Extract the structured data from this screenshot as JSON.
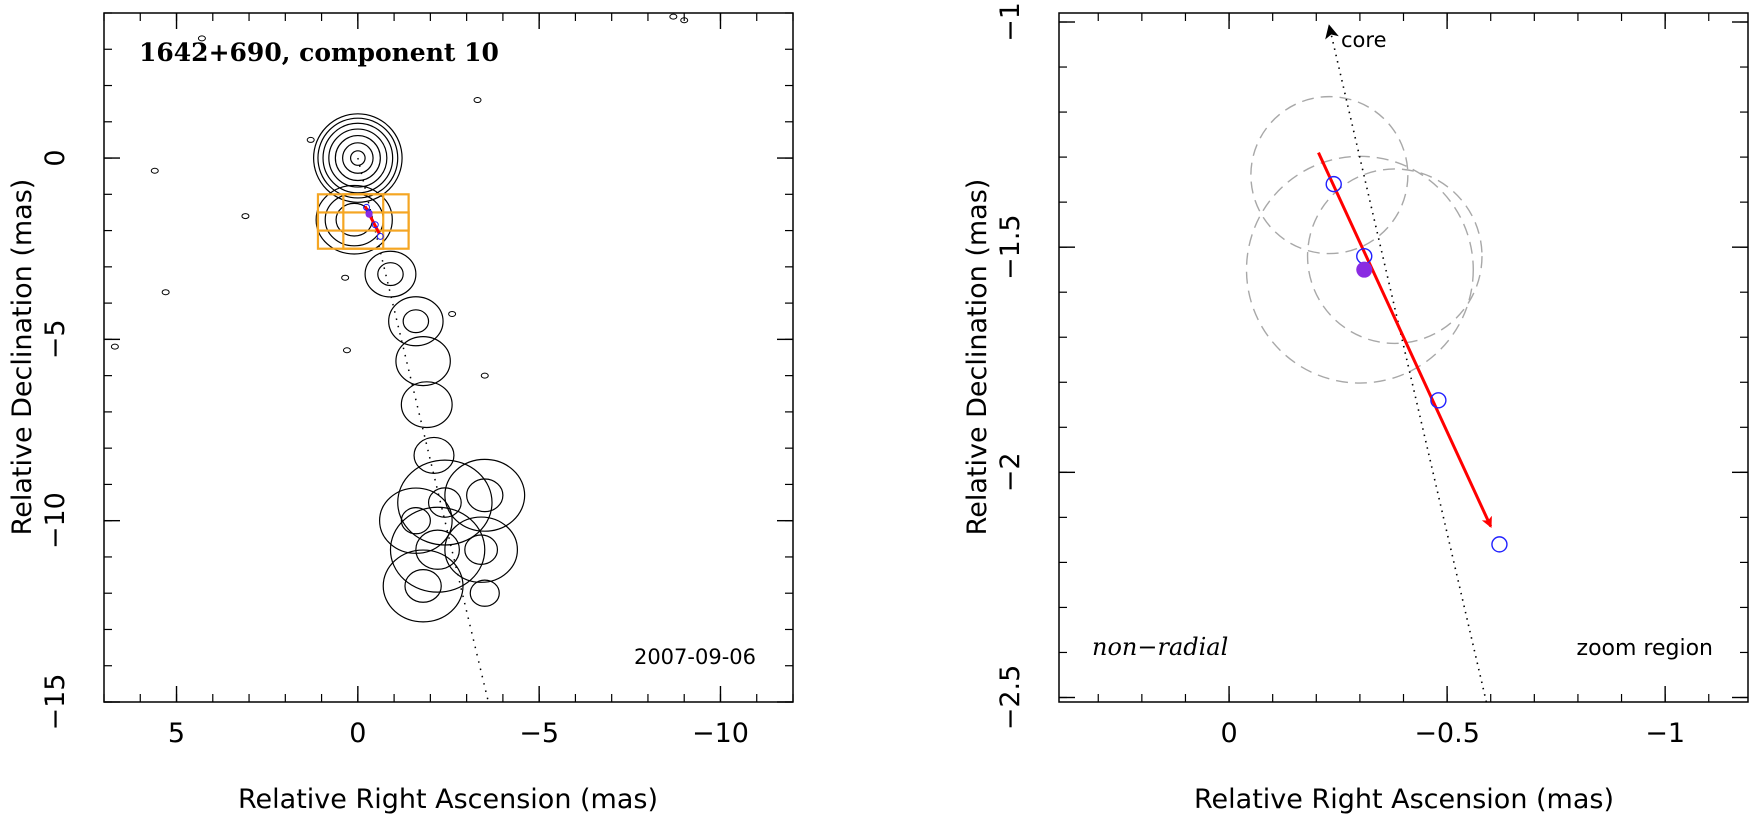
{
  "chart_data": [
    {
      "type": "contour",
      "id": "left",
      "title": "1642+690, component 10",
      "date_label": "2007-09-06",
      "xlabel": "Relative Right Ascension (mas)",
      "ylabel": "Relative Declination (mas)",
      "xlim": [
        7,
        -12
      ],
      "ylim": [
        -15,
        4
      ],
      "xticks_major": [
        5,
        0,
        -5,
        -10
      ],
      "yticks_major": [
        0,
        -5,
        -10,
        -15
      ],
      "xtick_labels": [
        "5",
        "0",
        "−5",
        "−10"
      ],
      "ytick_labels": [
        "0",
        "−5",
        "−10",
        "−15"
      ],
      "minor_step": 1,
      "core": {
        "x": 0,
        "y": 0,
        "contour_radii": [
          0.2,
          0.42,
          0.62,
          0.8,
          0.96,
          1.1,
          1.22
        ]
      },
      "contours": [
        {
          "x": 0.1,
          "y": -1.7,
          "radii": [
            0.5,
            0.8,
            1.05
          ]
        },
        {
          "x": -0.9,
          "y": -3.2,
          "radii": [
            0.35,
            0.7
          ]
        },
        {
          "x": -1.6,
          "y": -4.5,
          "radii": [
            0.35,
            0.75
          ]
        },
        {
          "x": -1.8,
          "y": -5.6,
          "radii": [
            0.75
          ]
        },
        {
          "x": -1.9,
          "y": -6.8,
          "radii": [
            0.7
          ]
        },
        {
          "x": -2.1,
          "y": -8.2,
          "radii": [
            0.55
          ]
        },
        {
          "x": -2.4,
          "y": -9.5,
          "radii": [
            0.45,
            1.3
          ]
        },
        {
          "x": -3.5,
          "y": -9.3,
          "radii": [
            0.5,
            1.1
          ]
        },
        {
          "x": -1.6,
          "y": -10.0,
          "radii": [
            0.4,
            1.0
          ]
        },
        {
          "x": -2.2,
          "y": -10.8,
          "radii": [
            0.6,
            1.3
          ]
        },
        {
          "x": -3.4,
          "y": -10.8,
          "radii": [
            0.45,
            1.0
          ]
        },
        {
          "x": -1.8,
          "y": -11.8,
          "radii": [
            0.5,
            1.1
          ]
        },
        {
          "x": -3.5,
          "y": -12.0,
          "radii": [
            0.4
          ]
        }
      ],
      "specks": [
        {
          "x": 5.6,
          "y": -0.35
        },
        {
          "x": 4.3,
          "y": 3.3
        },
        {
          "x": 1.3,
          "y": 0.5
        },
        {
          "x": 3.1,
          "y": -1.6
        },
        {
          "x": 5.3,
          "y": -3.7
        },
        {
          "x": 0.35,
          "y": -3.3
        },
        {
          "x": -3.3,
          "y": 1.6
        },
        {
          "x": -8.7,
          "y": 3.9
        },
        {
          "x": -9.0,
          "y": 3.8
        },
        {
          "x": -2.6,
          "y": -4.3
        },
        {
          "x": 0.3,
          "y": -5.3
        },
        {
          "x": -3.5,
          "y": -6.0
        },
        {
          "x": 6.7,
          "y": -5.2
        }
      ],
      "jet_axis": {
        "x1": 0,
        "y1": 0,
        "x2": -3.6,
        "y2": -15
      },
      "zoom_boxes": [
        {
          "x1": 1.1,
          "x2": -0.7,
          "y1": -1.0,
          "y2": -2.5
        },
        {
          "x1": 0.4,
          "x2": -1.4,
          "y1": -1.0,
          "y2": -2.5
        },
        {
          "x1": 1.1,
          "x2": -1.4,
          "y1": -1.5,
          "y2": -2.0
        }
      ],
      "component_track": {
        "x1": -0.2,
        "y1": -1.33,
        "x2": -0.6,
        "y2": -2.1
      },
      "component_epochs": [
        {
          "x": -0.24,
          "y": -1.36
        },
        {
          "x": -0.31,
          "y": -1.52
        },
        {
          "x": -0.48,
          "y": -1.84
        },
        {
          "x": -0.62,
          "y": -2.16
        }
      ],
      "component_mean": {
        "x": -0.31,
        "y": -1.55
      }
    },
    {
      "type": "scatter",
      "id": "right",
      "xlabel": "Relative Right Ascension (mas)",
      "ylabel": "Relative Declination (mas)",
      "xlim": [
        0.39,
        -1.19
      ],
      "ylim": [
        -2.51,
        -0.98
      ],
      "xticks_major": [
        0,
        -0.5,
        -1
      ],
      "yticks_major": [
        -1,
        -1.5,
        -2,
        -2.5
      ],
      "xtick_labels": [
        "0",
        "−0.5",
        "−1"
      ],
      "ytick_labels": [
        "−1",
        "−1.5",
        "−2",
        "−2.5"
      ],
      "minor_step": 0.1,
      "core_label": "core",
      "annotation_left": "non−radial",
      "annotation_right": "zoom region",
      "core_direction": {
        "x1": -0.59,
        "y1": -2.51,
        "x2": -0.23,
        "y2": -1.01
      },
      "epochs": [
        {
          "x": -0.24,
          "y": -1.36
        },
        {
          "x": -0.31,
          "y": -1.52
        },
        {
          "x": -0.48,
          "y": -1.84
        },
        {
          "x": -0.62,
          "y": -2.16
        }
      ],
      "mean_position": {
        "x": -0.31,
        "y": -1.55
      },
      "motion_vector": {
        "x1": -0.205,
        "y1": -1.29,
        "x2": -0.6,
        "y2": -2.12
      },
      "uncertainty_circles": [
        {
          "x": -0.23,
          "y": -1.34,
          "r": 0.18
        },
        {
          "x": -0.3,
          "y": -1.55,
          "r": 0.26
        },
        {
          "x": -0.38,
          "y": -1.52,
          "r": 0.2
        }
      ],
      "colors": {
        "vector": "#ff0000",
        "epoch": "#2020ff",
        "mean": "#8a2be2",
        "circle": "#a8a8a8",
        "zoom_box": "#f5a623"
      }
    }
  ]
}
